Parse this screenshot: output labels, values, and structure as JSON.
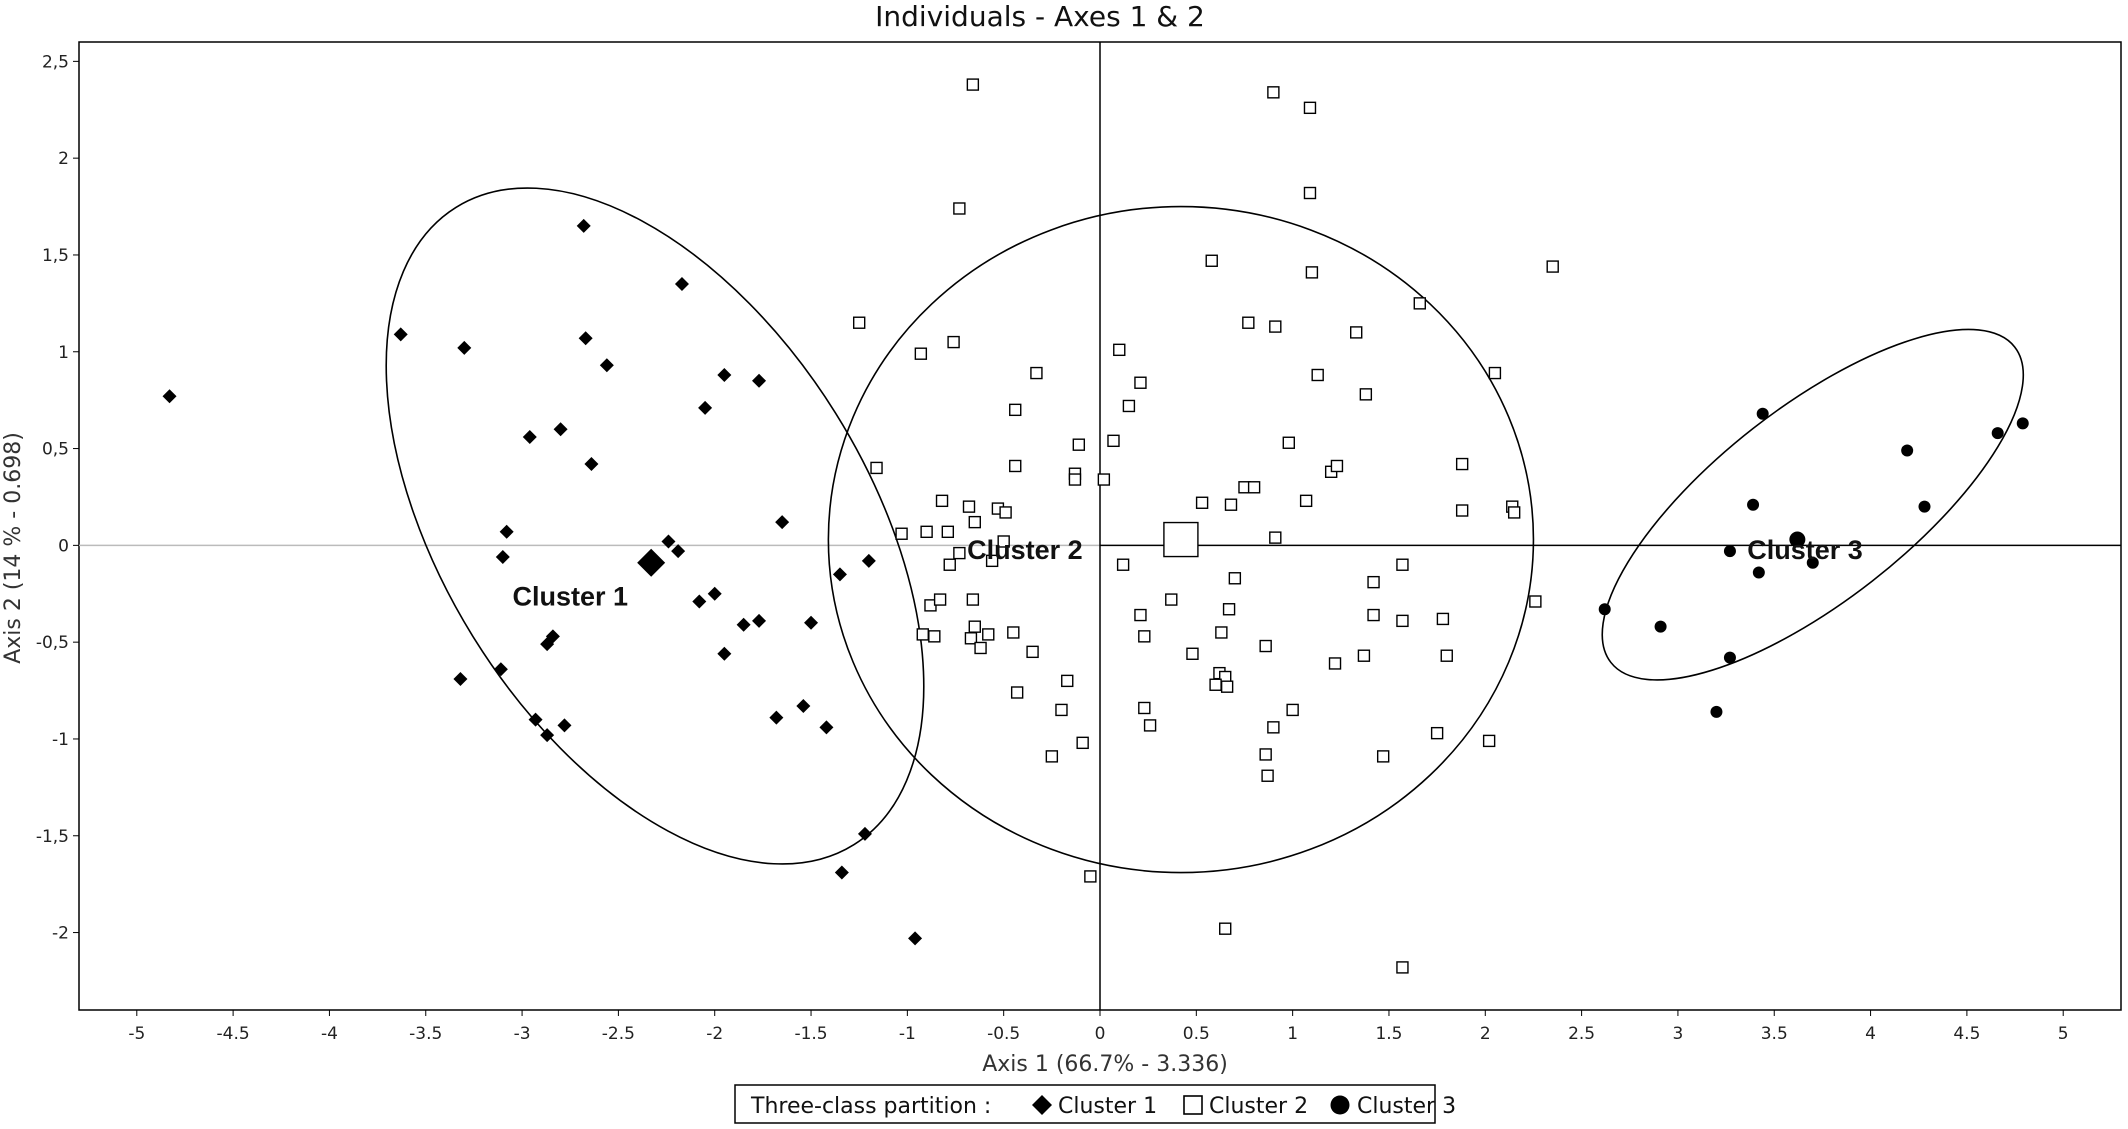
{
  "chart_data": {
    "type": "scatter",
    "title": "Individuals - Axes 1 & 2",
    "xlabel": "Axis 1 (66.7% - 3.336)",
    "ylabel": "Axis 2 (14 % - 0.698)",
    "xlim": [
      -5.3,
      5.3
    ],
    "ylim": [
      -2.4,
      2.6
    ],
    "x_ticks": [
      -5,
      -4.5,
      -4,
      -3.5,
      -3,
      -2.5,
      -2,
      -1.5,
      -1,
      -0.5,
      0,
      0.5,
      1,
      1.5,
      2,
      2.5,
      3,
      3.5,
      4,
      4.5,
      5
    ],
    "x_tick_labels": [
      "-5",
      "-4.5",
      "-4",
      "-3.5",
      "-3",
      "-2.5",
      "-2",
      "-1.5",
      "-1",
      "-0.5",
      "0",
      "0.5",
      "1",
      "1.5",
      "2",
      "2.5",
      "3",
      "3.5",
      "4",
      "4.5",
      "5"
    ],
    "y_ticks": [
      2.5,
      2,
      1.5,
      1,
      0.5,
      0,
      -0.5,
      -1,
      -1.5,
      -2
    ],
    "y_tick_labels": [
      "2,5",
      "2",
      "1,5",
      "1",
      "0,5",
      "0",
      "-0,5",
      "-1",
      "-1,5",
      "-2"
    ],
    "legend": {
      "title": "Three-class partition :",
      "placement": "bottom-center",
      "entries": [
        "Cluster 1",
        "Cluster 2",
        "Cluster 3"
      ]
    },
    "series": [
      {
        "name": "Cluster 1",
        "marker": "diamond",
        "color": "#000000",
        "centroid": [
          -2.33,
          -0.09
        ],
        "ellipse": {
          "center": [
            -2.31,
            0.1
          ],
          "rx": 1.95,
          "ry": 1.1,
          "angle_deg": 58
        },
        "points": [
          [
            -4.83,
            0.77
          ],
          [
            -3.63,
            1.09
          ],
          [
            -3.3,
            1.02
          ],
          [
            -2.68,
            1.65
          ],
          [
            -2.67,
            1.07
          ],
          [
            -2.56,
            0.93
          ],
          [
            -2.17,
            1.35
          ],
          [
            -1.95,
            0.88
          ],
          [
            -1.77,
            0.85
          ],
          [
            -2.05,
            0.71
          ],
          [
            -2.96,
            0.56
          ],
          [
            -2.8,
            0.6
          ],
          [
            -2.64,
            0.42
          ],
          [
            -3.08,
            0.07
          ],
          [
            -1.65,
            0.12
          ],
          [
            -3.1,
            -0.06
          ],
          [
            -2.24,
            0.02
          ],
          [
            -2.19,
            -0.03
          ],
          [
            -2.08,
            -0.29
          ],
          [
            -2.0,
            -0.25
          ],
          [
            -1.85,
            -0.41
          ],
          [
            -1.77,
            -0.39
          ],
          [
            -1.5,
            -0.4
          ],
          [
            -1.35,
            -0.15
          ],
          [
            -1.2,
            -0.08
          ],
          [
            -1.95,
            -0.56
          ],
          [
            -2.84,
            -0.47
          ],
          [
            -2.87,
            -0.51
          ],
          [
            -3.11,
            -0.64
          ],
          [
            -3.32,
            -0.69
          ],
          [
            -2.93,
            -0.9
          ],
          [
            -2.87,
            -0.98
          ],
          [
            -2.78,
            -0.93
          ],
          [
            -1.68,
            -0.89
          ],
          [
            -1.54,
            -0.83
          ],
          [
            -1.42,
            -0.94
          ],
          [
            -1.22,
            -1.49
          ],
          [
            -1.34,
            -1.69
          ],
          [
            -0.96,
            -2.03
          ]
        ]
      },
      {
        "name": "Cluster 2",
        "marker": "square",
        "color": "#000000",
        "centroid": [
          0.42,
          0.03
        ],
        "ellipse": {
          "center": [
            0.42,
            0.03
          ],
          "rx": 1.83,
          "ry": 1.72,
          "angle_deg": 0
        },
        "points": [
          [
            -0.66,
            2.38
          ],
          [
            -0.73,
            1.74
          ],
          [
            0.9,
            2.34
          ],
          [
            1.09,
            2.26
          ],
          [
            1.09,
            1.82
          ],
          [
            0.58,
            1.47
          ],
          [
            1.1,
            1.41
          ],
          [
            2.35,
            1.44
          ],
          [
            -1.25,
            1.15
          ],
          [
            -0.93,
            0.99
          ],
          [
            -0.76,
            1.05
          ],
          [
            0.77,
            1.15
          ],
          [
            0.91,
            1.13
          ],
          [
            1.33,
            1.1
          ],
          [
            1.66,
            1.25
          ],
          [
            -0.33,
            0.89
          ],
          [
            0.1,
            1.01
          ],
          [
            0.21,
            0.84
          ],
          [
            1.13,
            0.88
          ],
          [
            2.05,
            0.89
          ],
          [
            -0.44,
            0.7
          ],
          [
            0.15,
            0.72
          ],
          [
            1.38,
            0.78
          ],
          [
            -0.11,
            0.52
          ],
          [
            0.07,
            0.54
          ],
          [
            0.98,
            0.53
          ],
          [
            -1.16,
            0.4
          ],
          [
            -0.44,
            0.41
          ],
          [
            -0.13,
            0.37
          ],
          [
            -0.13,
            0.34
          ],
          [
            0.02,
            0.34
          ],
          [
            1.2,
            0.38
          ],
          [
            1.23,
            0.41
          ],
          [
            1.88,
            0.42
          ],
          [
            -0.82,
            0.23
          ],
          [
            -0.68,
            0.2
          ],
          [
            -0.53,
            0.19
          ],
          [
            -0.49,
            0.17
          ],
          [
            -0.65,
            0.12
          ],
          [
            -0.79,
            0.07
          ],
          [
            0.53,
            0.22
          ],
          [
            0.68,
            0.21
          ],
          [
            0.75,
            0.3
          ],
          [
            0.8,
            0.3
          ],
          [
            1.07,
            0.23
          ],
          [
            1.88,
            0.18
          ],
          [
            2.14,
            0.2
          ],
          [
            2.15,
            0.17
          ],
          [
            -1.03,
            0.06
          ],
          [
            -0.9,
            0.07
          ],
          [
            -0.5,
            0.02
          ],
          [
            0.91,
            0.04
          ],
          [
            -0.73,
            -0.04
          ],
          [
            -0.78,
            -0.1
          ],
          [
            -0.56,
            -0.08
          ],
          [
            0.12,
            -0.1
          ],
          [
            1.57,
            -0.1
          ],
          [
            -0.88,
            -0.31
          ],
          [
            -0.83,
            -0.28
          ],
          [
            -0.66,
            -0.28
          ],
          [
            0.37,
            -0.28
          ],
          [
            0.67,
            -0.33
          ],
          [
            0.7,
            -0.17
          ],
          [
            1.42,
            -0.19
          ],
          [
            2.26,
            -0.29
          ],
          [
            -0.92,
            -0.46
          ],
          [
            -0.86,
            -0.47
          ],
          [
            -0.65,
            -0.42
          ],
          [
            -0.67,
            -0.48
          ],
          [
            -0.62,
            -0.53
          ],
          [
            -0.58,
            -0.46
          ],
          [
            -0.45,
            -0.45
          ],
          [
            -0.35,
            -0.55
          ],
          [
            0.21,
            -0.36
          ],
          [
            0.23,
            -0.47
          ],
          [
            0.63,
            -0.45
          ],
          [
            0.86,
            -0.52
          ],
          [
            1.42,
            -0.36
          ],
          [
            1.57,
            -0.39
          ],
          [
            1.78,
            -0.38
          ],
          [
            -0.43,
            -0.76
          ],
          [
            -0.17,
            -0.7
          ],
          [
            -0.2,
            -0.85
          ],
          [
            0.48,
            -0.56
          ],
          [
            0.62,
            -0.66
          ],
          [
            0.65,
            -0.68
          ],
          [
            0.6,
            -0.72
          ],
          [
            0.66,
            -0.73
          ],
          [
            1.22,
            -0.61
          ],
          [
            1.37,
            -0.57
          ],
          [
            1.8,
            -0.57
          ],
          [
            0.23,
            -0.84
          ],
          [
            0.26,
            -0.93
          ],
          [
            0.9,
            -0.94
          ],
          [
            1.0,
            -0.85
          ],
          [
            -0.09,
            -1.02
          ],
          [
            -0.25,
            -1.09
          ],
          [
            0.86,
            -1.08
          ],
          [
            0.87,
            -1.19
          ],
          [
            1.47,
            -1.09
          ],
          [
            1.75,
            -0.97
          ],
          [
            2.02,
            -1.01
          ],
          [
            -0.05,
            -1.71
          ],
          [
            0.65,
            -1.98
          ],
          [
            1.57,
            -2.18
          ]
        ]
      },
      {
        "name": "Cluster 3",
        "marker": "circle",
        "color": "#000000",
        "centroid": [
          3.62,
          0.03
        ],
        "ellipse": {
          "center": [
            3.7,
            0.21
          ],
          "rx": 1.33,
          "ry": 0.5,
          "angle_deg": -38
        },
        "points": [
          [
            3.44,
            0.68
          ],
          [
            3.39,
            0.21
          ],
          [
            4.79,
            0.63
          ],
          [
            4.66,
            0.58
          ],
          [
            4.19,
            0.49
          ],
          [
            4.28,
            0.2
          ],
          [
            3.7,
            -0.09
          ],
          [
            3.42,
            -0.14
          ],
          [
            3.27,
            -0.03
          ],
          [
            2.62,
            -0.33
          ],
          [
            2.91,
            -0.42
          ],
          [
            3.27,
            -0.58
          ],
          [
            3.2,
            -0.86
          ]
        ]
      }
    ],
    "cluster_labels": [
      {
        "text": "Cluster 1",
        "anchor": [
          -2.75,
          -0.31
        ]
      },
      {
        "text": "Cluster 2",
        "anchor": [
          -0.39,
          -0.07
        ]
      },
      {
        "text": "Cluster 3",
        "anchor": [
          3.66,
          -0.07
        ]
      }
    ]
  }
}
